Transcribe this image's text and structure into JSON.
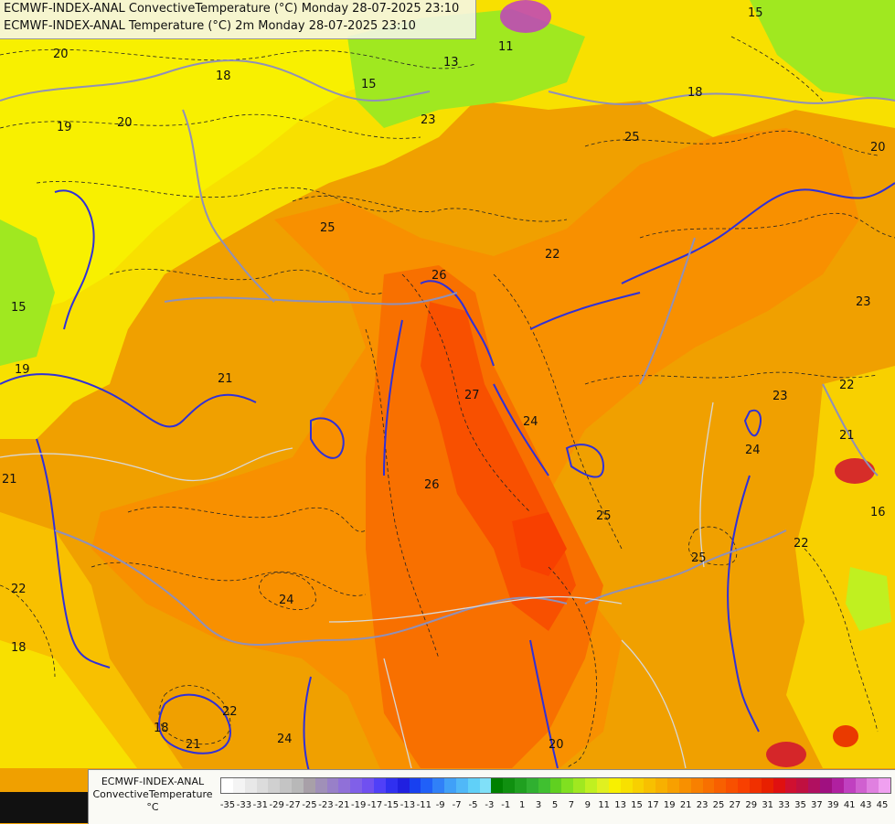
{
  "header": {
    "line1": "ECMWF-INDEX-ANAL ConvectiveTemperature (°C) Monday 28-07-2025 23:10",
    "line2": "ECMWF-INDEX-ANAL Temperature (°C) 2m Monday 28-07-2025 23:10"
  },
  "legend": {
    "title1": "ECMWF-INDEX-ANAL",
    "title2": "ConvectiveTemperature",
    "unit": "°C",
    "ticks": [
      "-35",
      "-33",
      "-31",
      "-29",
      "-27",
      "-25",
      "-23",
      "-21",
      "-19",
      "-17",
      "-15",
      "-13",
      "-11",
      "-9",
      "-7",
      "-5",
      "-3",
      "-1",
      "1",
      "3",
      "5",
      "7",
      "9",
      "11",
      "13",
      "15",
      "17",
      "19",
      "21",
      "23",
      "25",
      "27",
      "29",
      "31",
      "33",
      "35",
      "37",
      "39",
      "41",
      "43",
      "45"
    ],
    "colors": [
      "#ffffff",
      "#f4f4f4",
      "#e8e8e8",
      "#dcdcdc",
      "#d0d0d0",
      "#c4c4c4",
      "#b8b8b8",
      "#a8a0a8",
      "#a090b8",
      "#9880c8",
      "#9070d8",
      "#8060e8",
      "#7050f0",
      "#5040f8",
      "#3030f0",
      "#2020e0",
      "#1840f0",
      "#2060f8",
      "#3080f8",
      "#40a0f8",
      "#50b8f8",
      "#60d0f8",
      "#80e0f8",
      "#008000",
      "#109010",
      "#20a020",
      "#30b030",
      "#40c030",
      "#60d020",
      "#80e020",
      "#a0e820",
      "#c0f020",
      "#e0f020",
      "#f8f000",
      "#f8e000",
      "#f8d000",
      "#f8c000",
      "#f8b000",
      "#f8a000",
      "#f89000",
      "#f88000",
      "#f87000",
      "#f86000",
      "#f85000",
      "#f84000",
      "#f03000",
      "#e82000",
      "#e01010",
      "#d01030",
      "#c01040",
      "#b01060",
      "#a01080",
      "#b020a0",
      "#c040c0",
      "#d060d0",
      "#e080e0",
      "#f0a0f0"
    ]
  },
  "contour_labels": [
    "20",
    "19",
    "20",
    "18",
    "15",
    "13",
    "11",
    "15",
    "18",
    "23",
    "25",
    "20",
    "19",
    "21",
    "25",
    "26",
    "22",
    "27",
    "24",
    "26",
    "25",
    "23",
    "22",
    "23",
    "24",
    "21",
    "22",
    "18",
    "24",
    "21",
    "22",
    "24",
    "18",
    "20",
    "25",
    "21",
    "16",
    "22",
    "15"
  ]
}
